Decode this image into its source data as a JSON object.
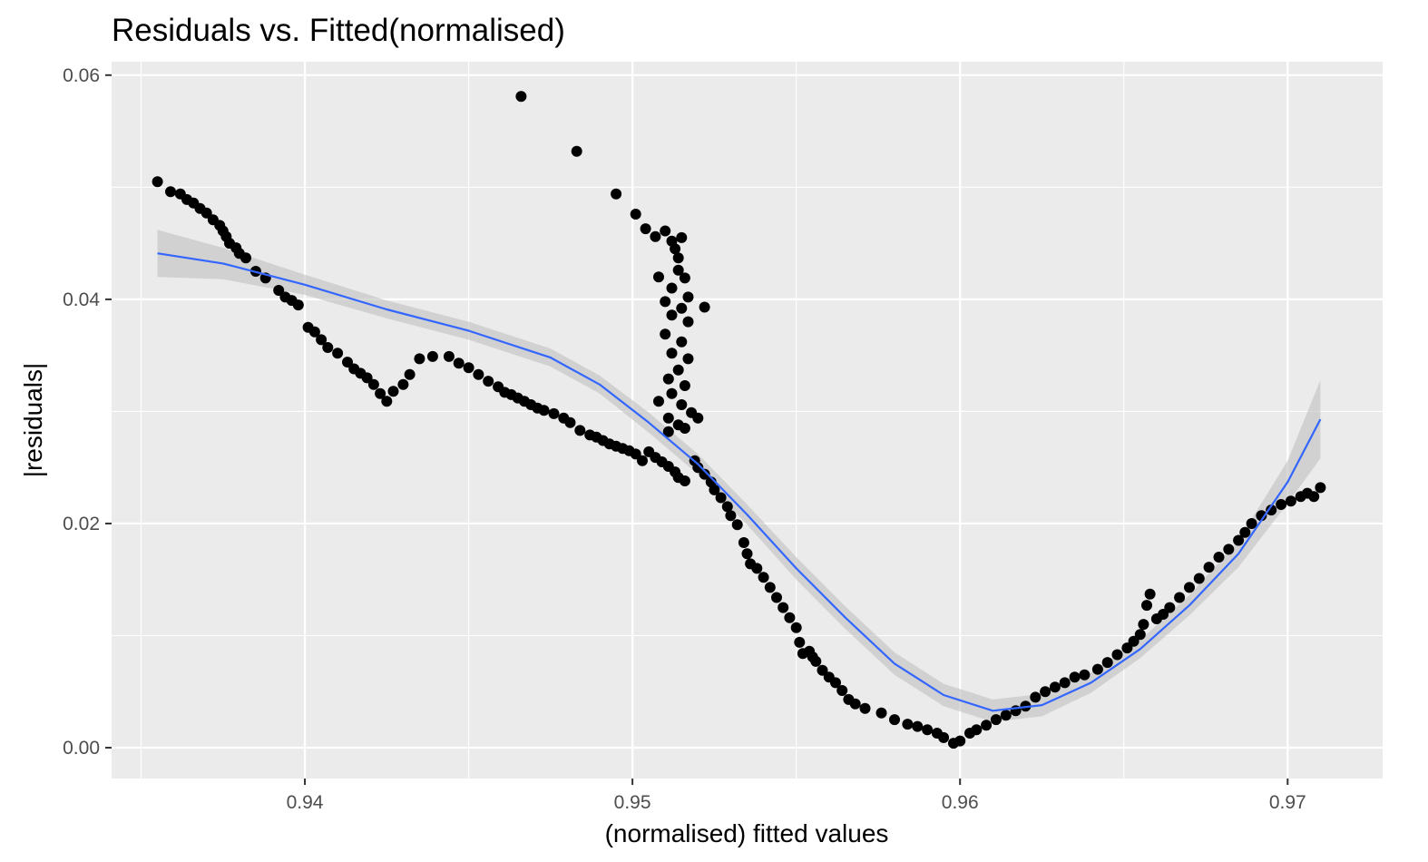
{
  "chart_data": {
    "type": "scatter",
    "title": "Residuals vs. Fitted(normalised)",
    "xlabel": "(normalised) fitted values",
    "ylabel": "|residuals|",
    "xlim": [
      0.9341,
      0.9729
    ],
    "ylim": [
      -0.00275,
      0.0612
    ],
    "x_major_ticks": [
      0.94,
      0.95,
      0.96,
      0.97
    ],
    "x_tick_labels": [
      "0.94",
      "0.95",
      "0.96",
      "0.97"
    ],
    "x_minor_ticks": [
      0.935,
      0.945,
      0.955,
      0.965
    ],
    "y_major_ticks": [
      0.0,
      0.02,
      0.04,
      0.06
    ],
    "y_tick_labels": [
      "0.00",
      "0.02",
      "0.04",
      "0.06"
    ],
    "y_minor_ticks": [
      0.01,
      0.03,
      0.05
    ],
    "grid": true,
    "colors": {
      "panel_background": "#ebebeb",
      "gridline": "#ffffff",
      "points": "#000000",
      "smooth_line": "#3366ff",
      "confidence_band": "#c0c0c0"
    },
    "series": [
      {
        "points": [
          [
            0.9355,
            0.0505
          ],
          [
            0.9359,
            0.0496
          ],
          [
            0.9362,
            0.0494
          ],
          [
            0.9364,
            0.0489
          ],
          [
            0.9366,
            0.0486
          ],
          [
            0.9368,
            0.0481
          ],
          [
            0.937,
            0.0477
          ],
          [
            0.9372,
            0.0471
          ],
          [
            0.9374,
            0.0466
          ],
          [
            0.9375,
            0.0461
          ],
          [
            0.9376,
            0.0456
          ],
          [
            0.9377,
            0.045
          ],
          [
            0.9379,
            0.0446
          ],
          [
            0.938,
            0.0441
          ],
          [
            0.9382,
            0.0437
          ],
          [
            0.9385,
            0.0425
          ],
          [
            0.9388,
            0.0419
          ],
          [
            0.9392,
            0.0408
          ],
          [
            0.9394,
            0.0402
          ],
          [
            0.9396,
            0.0399
          ],
          [
            0.9398,
            0.0395
          ],
          [
            0.9401,
            0.0375
          ],
          [
            0.9403,
            0.0371
          ],
          [
            0.9405,
            0.0364
          ],
          [
            0.9407,
            0.0357
          ],
          [
            0.941,
            0.0352
          ],
          [
            0.9413,
            0.0344
          ],
          [
            0.9415,
            0.0338
          ],
          [
            0.9417,
            0.0334
          ],
          [
            0.9419,
            0.033
          ],
          [
            0.9421,
            0.0324
          ],
          [
            0.9423,
            0.0316
          ],
          [
            0.9425,
            0.0309
          ],
          [
            0.9427,
            0.0318
          ],
          [
            0.943,
            0.0324
          ],
          [
            0.9432,
            0.0333
          ],
          [
            0.9435,
            0.0347
          ],
          [
            0.9439,
            0.0349
          ],
          [
            0.9444,
            0.0349
          ],
          [
            0.9447,
            0.0343
          ],
          [
            0.945,
            0.0339
          ],
          [
            0.9453,
            0.0333
          ],
          [
            0.9456,
            0.0327
          ],
          [
            0.9459,
            0.0322
          ],
          [
            0.9461,
            0.0317
          ],
          [
            0.9463,
            0.0315
          ],
          [
            0.9465,
            0.0312
          ],
          [
            0.9467,
            0.0309
          ],
          [
            0.9469,
            0.0306
          ],
          [
            0.9471,
            0.0303
          ],
          [
            0.9473,
            0.0301
          ],
          [
            0.9476,
            0.0298
          ],
          [
            0.9479,
            0.0294
          ],
          [
            0.9481,
            0.029
          ],
          [
            0.9484,
            0.0283
          ],
          [
            0.9487,
            0.0279
          ],
          [
            0.9489,
            0.0277
          ],
          [
            0.9491,
            0.0274
          ],
          [
            0.9493,
            0.0271
          ],
          [
            0.9495,
            0.0269
          ],
          [
            0.9497,
            0.0267
          ],
          [
            0.9499,
            0.0265
          ],
          [
            0.9501,
            0.0262
          ],
          [
            0.9503,
            0.0256
          ],
          [
            0.9505,
            0.0264
          ],
          [
            0.9507,
            0.0259
          ],
          [
            0.9509,
            0.0255
          ],
          [
            0.9511,
            0.0251
          ],
          [
            0.9513,
            0.0246
          ],
          [
            0.9514,
            0.0241
          ],
          [
            0.9516,
            0.0238
          ],
          [
            0.9519,
            0.0256
          ],
          [
            0.952,
            0.025
          ],
          [
            0.9522,
            0.0244
          ],
          [
            0.9524,
            0.0237
          ],
          [
            0.9525,
            0.023
          ],
          [
            0.9527,
            0.0223
          ],
          [
            0.9529,
            0.0215
          ],
          [
            0.953,
            0.0207
          ],
          [
            0.9532,
            0.0199
          ],
          [
            0.9534,
            0.0183
          ],
          [
            0.9535,
            0.0173
          ],
          [
            0.9536,
            0.0164
          ],
          [
            0.9538,
            0.016
          ],
          [
            0.954,
            0.0152
          ],
          [
            0.9542,
            0.0143
          ],
          [
            0.9544,
            0.0134
          ],
          [
            0.9546,
            0.0125
          ],
          [
            0.9548,
            0.0116
          ],
          [
            0.955,
            0.0107
          ],
          [
            0.9551,
            0.0094
          ],
          [
            0.9552,
            0.0084
          ],
          [
            0.9554,
            0.0086
          ],
          [
            0.9555,
            0.0081
          ],
          [
            0.9556,
            0.0077
          ],
          [
            0.9558,
            0.0069
          ],
          [
            0.956,
            0.0063
          ],
          [
            0.9562,
            0.0058
          ],
          [
            0.9564,
            0.0051
          ],
          [
            0.9566,
            0.0043
          ],
          [
            0.9568,
            0.0039
          ],
          [
            0.9571,
            0.0035
          ],
          [
            0.9576,
            0.0031
          ],
          [
            0.958,
            0.0025
          ],
          [
            0.9584,
            0.0021
          ],
          [
            0.9587,
            0.0019
          ],
          [
            0.959,
            0.0016
          ],
          [
            0.9593,
            0.0013
          ],
          [
            0.9595,
            0.0009
          ],
          [
            0.9598,
            0.0004
          ],
          [
            0.96,
            0.0006
          ],
          [
            0.9603,
            0.0013
          ],
          [
            0.9605,
            0.0016
          ],
          [
            0.9608,
            0.002
          ],
          [
            0.9611,
            0.0025
          ],
          [
            0.9614,
            0.0029
          ],
          [
            0.9617,
            0.0033
          ],
          [
            0.962,
            0.0037
          ],
          [
            0.9623,
            0.0045
          ],
          [
            0.9626,
            0.005
          ],
          [
            0.9629,
            0.0054
          ],
          [
            0.9632,
            0.0058
          ],
          [
            0.9635,
            0.0063
          ],
          [
            0.9638,
            0.0065
          ],
          [
            0.9642,
            0.007
          ],
          [
            0.9645,
            0.0076
          ],
          [
            0.9648,
            0.0083
          ],
          [
            0.9651,
            0.0089
          ],
          [
            0.9653,
            0.0095
          ],
          [
            0.9655,
            0.0101
          ],
          [
            0.9656,
            0.011
          ],
          [
            0.9657,
            0.0127
          ],
          [
            0.9658,
            0.0137
          ],
          [
            0.966,
            0.0115
          ],
          [
            0.9662,
            0.0119
          ],
          [
            0.9664,
            0.0125
          ],
          [
            0.9667,
            0.0134
          ],
          [
            0.967,
            0.0143
          ],
          [
            0.9673,
            0.0151
          ],
          [
            0.9676,
            0.0161
          ],
          [
            0.9679,
            0.017
          ],
          [
            0.9682,
            0.0177
          ],
          [
            0.9685,
            0.0185
          ],
          [
            0.9687,
            0.0192
          ],
          [
            0.9689,
            0.02
          ],
          [
            0.9692,
            0.0207
          ],
          [
            0.9695,
            0.0212
          ],
          [
            0.9698,
            0.0217
          ],
          [
            0.9701,
            0.022
          ],
          [
            0.9704,
            0.0224
          ],
          [
            0.9706,
            0.0227
          ],
          [
            0.9708,
            0.0224
          ],
          [
            0.971,
            0.0232
          ],
          [
            0.9466,
            0.0581
          ],
          [
            0.9483,
            0.0532
          ],
          [
            0.9495,
            0.0494
          ],
          [
            0.9501,
            0.0476
          ],
          [
            0.9504,
            0.0463
          ],
          [
            0.9507,
            0.0456
          ],
          [
            0.951,
            0.0461
          ],
          [
            0.9512,
            0.0452
          ],
          [
            0.9513,
            0.0445
          ],
          [
            0.9514,
            0.0437
          ],
          [
            0.9515,
            0.0455
          ],
          [
            0.9514,
            0.0426
          ],
          [
            0.9516,
            0.0419
          ],
          [
            0.9508,
            0.042
          ],
          [
            0.9512,
            0.041
          ],
          [
            0.9517,
            0.0402
          ],
          [
            0.951,
            0.0398
          ],
          [
            0.9515,
            0.0392
          ],
          [
            0.9522,
            0.0393
          ],
          [
            0.9512,
            0.0386
          ],
          [
            0.9517,
            0.038
          ],
          [
            0.951,
            0.0369
          ],
          [
            0.9515,
            0.0362
          ],
          [
            0.9512,
            0.0352
          ],
          [
            0.9517,
            0.0347
          ],
          [
            0.9514,
            0.0337
          ],
          [
            0.9511,
            0.0329
          ],
          [
            0.9516,
            0.0323
          ],
          [
            0.9512,
            0.0316
          ],
          [
            0.9508,
            0.0309
          ],
          [
            0.9515,
            0.0306
          ],
          [
            0.9518,
            0.0299
          ],
          [
            0.9511,
            0.0294
          ],
          [
            0.9514,
            0.0288
          ],
          [
            0.952,
            0.0294
          ],
          [
            0.9511,
            0.0282
          ],
          [
            0.9516,
            0.0285
          ]
        ]
      }
    ],
    "smooth": {
      "x": [
        0.9355,
        0.9375,
        0.94,
        0.9425,
        0.945,
        0.9475,
        0.949,
        0.9505,
        0.952,
        0.9535,
        0.955,
        0.9565,
        0.958,
        0.9595,
        0.961,
        0.9625,
        0.964,
        0.9655,
        0.967,
        0.9685,
        0.97,
        0.971
      ],
      "y": [
        0.0441,
        0.0432,
        0.0413,
        0.0391,
        0.0372,
        0.0348,
        0.0324,
        0.029,
        0.0253,
        0.0208,
        0.016,
        0.0116,
        0.0075,
        0.0047,
        0.0033,
        0.0038,
        0.0058,
        0.0088,
        0.0127,
        0.0173,
        0.0237,
        0.0293
      ],
      "se": [
        0.0021,
        0.0014,
        0.0009,
        0.0008,
        0.0008,
        0.0008,
        0.0008,
        0.0009,
        0.0009,
        0.0009,
        0.001,
        0.001,
        0.001,
        0.001,
        0.001,
        0.001,
        0.0009,
        0.0008,
        0.0009,
        0.0012,
        0.0019,
        0.0035
      ]
    }
  }
}
